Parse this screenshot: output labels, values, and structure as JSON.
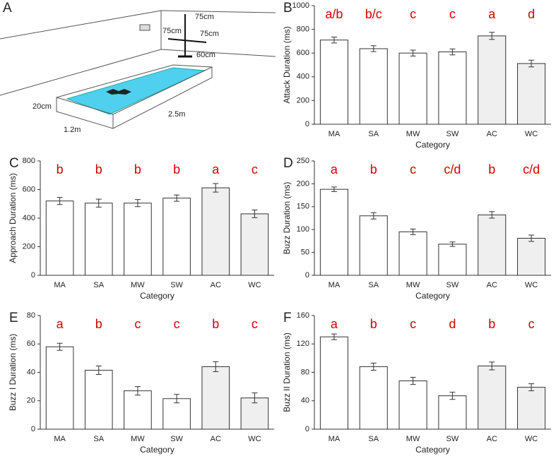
{
  "diagram": {
    "panel": "A",
    "labels": [
      "75cm",
      "75cm",
      "75cm",
      "60cm",
      "20cm",
      "1.2m",
      "2.5m"
    ]
  },
  "chart_data": [
    {
      "type": "bar",
      "panel": "B",
      "ylabel": "Attack Duration (ms)",
      "xlabel": "Category",
      "categories": [
        "MA",
        "SA",
        "MW",
        "SW",
        "AC",
        "WC"
      ],
      "values": [
        710,
        637,
        600,
        610,
        745,
        512
      ],
      "errors": [
        25,
        25,
        25,
        25,
        30,
        28
      ],
      "colors": [
        "#ffffff",
        "#ffffff",
        "#ffffff",
        "#ffffff",
        "#efefef",
        "#efefef"
      ],
      "letters": [
        "a/b",
        "b/c",
        "c",
        "c",
        "a",
        "d"
      ],
      "letter_color": "#d40000",
      "ylim": [
        0,
        1000
      ],
      "yticks": [
        0,
        200,
        400,
        600,
        800,
        1000
      ]
    },
    {
      "type": "bar",
      "panel": "C",
      "ylabel": "Approach Duration (ms)",
      "xlabel": "Category",
      "categories": [
        "MA",
        "SA",
        "MW",
        "SW",
        "AC",
        "WC"
      ],
      "values": [
        520,
        505,
        505,
        540,
        612,
        430
      ],
      "errors": [
        25,
        28,
        25,
        22,
        30,
        27
      ],
      "colors": [
        "#ffffff",
        "#ffffff",
        "#ffffff",
        "#ffffff",
        "#efefef",
        "#efefef"
      ],
      "letters": [
        "b",
        "b",
        "b",
        "b",
        "a",
        "c"
      ],
      "letter_color": "#d40000",
      "ylim": [
        0,
        800
      ],
      "yticks": [
        0,
        200,
        400,
        600,
        800
      ]
    },
    {
      "type": "bar",
      "panel": "D",
      "ylabel": "Buzz Duration (ms)",
      "xlabel": "Category",
      "categories": [
        "MA",
        "SA",
        "MW",
        "SW",
        "AC",
        "WC"
      ],
      "values": [
        188,
        130,
        95,
        68,
        132,
        81
      ],
      "errors": [
        5,
        7,
        6,
        5,
        7,
        7
      ],
      "colors": [
        "#ffffff",
        "#ffffff",
        "#ffffff",
        "#ffffff",
        "#efefef",
        "#efefef"
      ],
      "letters": [
        "a",
        "b",
        "c",
        "c/d",
        "b",
        "c/d"
      ],
      "letter_color": "#d40000",
      "ylim": [
        0,
        250
      ],
      "yticks": [
        0,
        50,
        100,
        150,
        200,
        250
      ]
    },
    {
      "type": "bar",
      "panel": "E",
      "ylabel": "Buzz I Duration (ms)",
      "xlabel": "Category",
      "categories": [
        "MA",
        "SA",
        "MW",
        "SW",
        "AC",
        "WC"
      ],
      "values": [
        58,
        41.5,
        27,
        21.5,
        44,
        22
      ],
      "errors": [
        2.5,
        3,
        3,
        3,
        3.5,
        3.5
      ],
      "colors": [
        "#ffffff",
        "#ffffff",
        "#ffffff",
        "#ffffff",
        "#efefef",
        "#efefef"
      ],
      "letters": [
        "a",
        "b",
        "c",
        "c",
        "b",
        "c"
      ],
      "letter_color": "#d40000",
      "ylim": [
        0,
        80
      ],
      "yticks": [
        0,
        20,
        40,
        60,
        80
      ]
    },
    {
      "type": "bar",
      "panel": "F",
      "ylabel": "Buzz II Duration (ms)",
      "xlabel": "Category",
      "categories": [
        "MA",
        "SA",
        "MW",
        "SW",
        "AC",
        "WC"
      ],
      "values": [
        130,
        88,
        68,
        47,
        89,
        59
      ],
      "errors": [
        4,
        5,
        5,
        5,
        5.5,
        5
      ],
      "colors": [
        "#ffffff",
        "#ffffff",
        "#ffffff",
        "#ffffff",
        "#efefef",
        "#efefef"
      ],
      "letters": [
        "a",
        "b",
        "c",
        "d",
        "b",
        "c"
      ],
      "letter_color": "#d40000",
      "ylim": [
        0,
        160
      ],
      "yticks": [
        0,
        40,
        80,
        120,
        160
      ]
    }
  ]
}
